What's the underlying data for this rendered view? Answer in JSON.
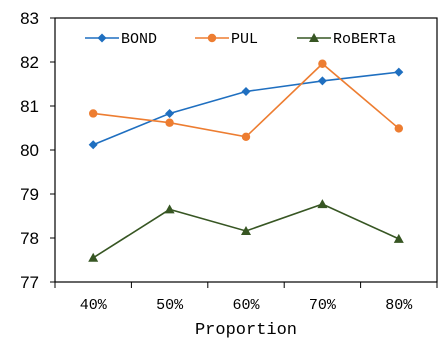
{
  "chart_data": {
    "type": "line",
    "title": "",
    "xlabel": "Proportion",
    "ylabel": "",
    "categories": [
      "40%",
      "50%",
      "60%",
      "70%",
      "80%"
    ],
    "ylim": [
      77,
      83
    ],
    "yticks": [
      "77",
      "78",
      "79",
      "80",
      "81",
      "82",
      "83"
    ],
    "grid": false,
    "legend": "top",
    "series": [
      {
        "name": "BOND",
        "color": "#1f6fc0",
        "marker": "diamond",
        "values": [
          80.12,
          80.83,
          81.33,
          81.57,
          81.77
        ]
      },
      {
        "name": "PUL",
        "color": "#ed7d31",
        "marker": "circle",
        "values": [
          80.83,
          80.62,
          80.3,
          81.96,
          80.49
        ]
      },
      {
        "name": "RoBERTa",
        "color": "#375623",
        "marker": "triangle",
        "values": [
          77.55,
          78.65,
          78.16,
          78.77,
          77.98
        ]
      }
    ]
  }
}
